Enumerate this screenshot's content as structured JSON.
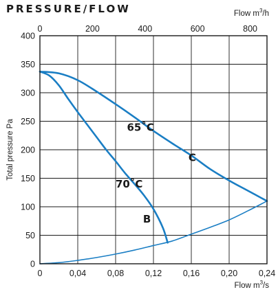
{
  "chart_data": {
    "type": "line",
    "title": "PRESSURE/FLOW",
    "xlabel_bottom": {
      "base": "Flow m",
      "sup": "3",
      "tail": "/s"
    },
    "xlabel_top": {
      "base": "Flow m",
      "sup": "3",
      "tail": "/h"
    },
    "ylabel": "Total pressure Pa",
    "xlim": [
      0,
      0.24
    ],
    "ylim": [
      0,
      400
    ],
    "top_xlim": [
      0,
      864
    ],
    "x_ticks": [
      0,
      0.04,
      0.08,
      0.12,
      0.16,
      0.2,
      0.24
    ],
    "x_tick_labels": [
      "0",
      "0,04",
      "0,08",
      "0,12",
      "0,16",
      "0,20",
      "0,24"
    ],
    "y_ticks": [
      0,
      50,
      100,
      150,
      200,
      250,
      300,
      350,
      400
    ],
    "y_tick_labels": [
      "0",
      "50",
      "100",
      "150",
      "200",
      "250",
      "300",
      "350",
      "400"
    ],
    "top_ticks": [
      0,
      200,
      400,
      600,
      800
    ],
    "top_tick_labels": [
      "0",
      "200",
      "400",
      "600",
      "800"
    ],
    "grid": true,
    "series": [
      {
        "name": "C",
        "label_at": [
          0.157,
          180
        ],
        "x": [
          0,
          0.02,
          0.04,
          0.06,
          0.08,
          0.1,
          0.12,
          0.14,
          0.16,
          0.18,
          0.2,
          0.22,
          0.24
        ],
        "y": [
          337,
          334,
          322,
          302,
          280,
          257,
          233,
          211,
          190,
          166,
          146,
          128,
          110
        ]
      },
      {
        "name": "B",
        "label_at": [
          0.109,
          72
        ],
        "x": [
          0,
          0.01,
          0.02,
          0.03,
          0.04,
          0.05,
          0.06,
          0.07,
          0.08,
          0.09,
          0.1,
          0.11,
          0.12,
          0.13,
          0.135
        ],
        "y": [
          337,
          330,
          313,
          289,
          266,
          244,
          222,
          200,
          180,
          159,
          140,
          120,
          96,
          63,
          37
        ]
      },
      {
        "name": "",
        "x": [
          0,
          0.02,
          0.04,
          0.06,
          0.08,
          0.1,
          0.12,
          0.14,
          0.16,
          0.18,
          0.2,
          0.22,
          0.24
        ],
        "y": [
          0,
          2,
          6,
          11,
          17,
          24,
          32,
          40,
          52,
          64,
          77,
          93,
          110
        ]
      }
    ],
    "annotations": [
      {
        "text": "65˚C",
        "at": [
          0.092,
          233
        ]
      },
      {
        "text": "70˚C",
        "at": [
          0.08,
          134
        ]
      }
    ],
    "colors": {
      "curve": "#1a7ec4",
      "frame": "#1a1a1a",
      "grid": "#1a1a1a"
    }
  }
}
